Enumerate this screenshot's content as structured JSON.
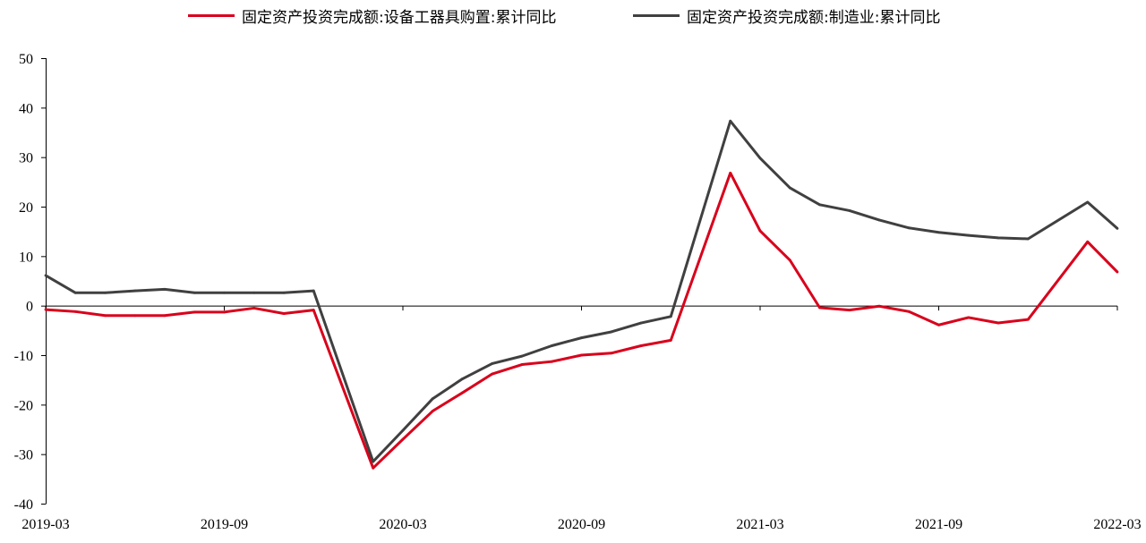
{
  "chart_data": {
    "type": "line",
    "ylim": [
      -40,
      50
    ],
    "yticks": [
      "50",
      "40",
      "30",
      "20",
      "10",
      "0",
      "-10",
      "-20",
      "-30",
      "-40"
    ],
    "xticks": [
      "2019-03",
      "2019-09",
      "2020-03",
      "2020-09",
      "2021-03",
      "2021-09",
      "2022-03"
    ],
    "x_axis_crosses": 0,
    "grid": false,
    "legend_position": "top",
    "x": [
      "2019-03",
      "2019-04",
      "2019-05",
      "2019-06",
      "2019-07",
      "2019-08",
      "2019-09",
      "2019-10",
      "2019-11",
      "2019-12",
      "2020-02",
      "2020-03",
      "2020-04",
      "2020-05",
      "2020-06",
      "2020-07",
      "2020-08",
      "2020-09",
      "2020-10",
      "2020-11",
      "2020-12",
      "2021-02",
      "2021-03",
      "2021-04",
      "2021-05",
      "2021-06",
      "2021-07",
      "2021-08",
      "2021-09",
      "2021-10",
      "2021-11",
      "2021-12",
      "2022-02",
      "2022-03"
    ],
    "series": [
      {
        "name": "固定资产投资完成额:设备工器具购置:累计同比",
        "color": "#d9001b",
        "values": [
          -0.8,
          -1.2,
          -2.0,
          -2.0,
          -2.0,
          -1.3,
          -1.3,
          -0.5,
          -1.6,
          -0.9,
          -32.8,
          -27.0,
          -21.3,
          -17.6,
          -13.8,
          -11.9,
          -11.3,
          -10.0,
          -9.6,
          -8.1,
          -7.0,
          26.8,
          15.1,
          9.2,
          -0.4,
          -0.9,
          -0.1,
          -1.2,
          -3.9,
          -2.4,
          -3.5,
          -2.8,
          12.9,
          6.8
        ]
      },
      {
        "name": "固定资产投资完成额:制造业:累计同比",
        "color": "#404040",
        "values": [
          6.1,
          2.6,
          2.6,
          3.0,
          3.3,
          2.6,
          2.6,
          2.6,
          2.6,
          3.0,
          -31.5,
          -25.2,
          -18.8,
          -14.8,
          -11.7,
          -10.2,
          -8.1,
          -6.5,
          -5.3,
          -3.5,
          -2.2,
          37.3,
          29.8,
          23.8,
          20.4,
          19.2,
          17.3,
          15.7,
          14.8,
          14.2,
          13.7,
          13.5,
          20.9,
          15.6
        ]
      }
    ]
  }
}
